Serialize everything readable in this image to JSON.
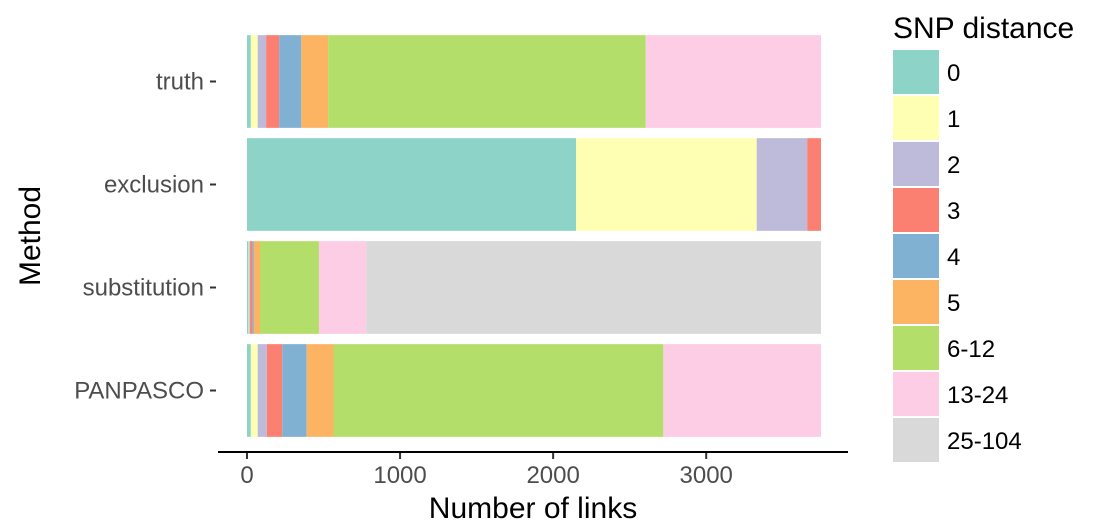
{
  "chart_data": {
    "type": "bar",
    "orientation": "horizontal",
    "stacked": true,
    "xlabel": "Number of links",
    "ylabel": "Method",
    "xlim": [
      0,
      3750
    ],
    "x_ticks": [
      0,
      1000,
      2000,
      3000
    ],
    "categories": [
      "truth",
      "exclusion",
      "substitution",
      "PANPASCO"
    ],
    "legend": {
      "title": "SNP distance",
      "placement": "right"
    },
    "series": [
      {
        "name": "0",
        "color": "#8DD3C7",
        "values": [
          25,
          2150,
          10,
          25
        ]
      },
      {
        "name": "1",
        "color": "#FFFFB3",
        "values": [
          45,
          1180,
          5,
          45
        ]
      },
      {
        "name": "2",
        "color": "#BEBADA",
        "values": [
          55,
          330,
          5,
          60
        ]
      },
      {
        "name": "3",
        "color": "#FB8072",
        "values": [
          85,
          90,
          15,
          100
        ]
      },
      {
        "name": "4",
        "color": "#80B1D3",
        "values": [
          145,
          0,
          10,
          160
        ]
      },
      {
        "name": "5",
        "color": "#FDB462",
        "values": [
          175,
          0,
          40,
          175
        ]
      },
      {
        "name": "6-12",
        "color": "#B3DE69",
        "values": [
          2075,
          0,
          385,
          2155
        ]
      },
      {
        "name": "13-24",
        "color": "#FCCDE5",
        "values": [
          1145,
          0,
          310,
          1030
        ]
      },
      {
        "name": "25-104",
        "color": "#D9D9D9",
        "values": [
          0,
          0,
          2970,
          0
        ]
      }
    ]
  }
}
